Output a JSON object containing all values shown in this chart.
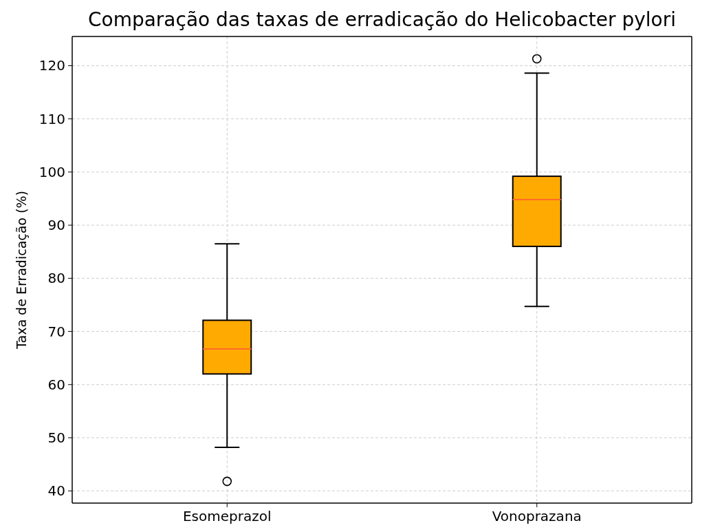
{
  "chart_data": {
    "type": "box",
    "title": "Comparação das taxas de erradicação do Helicobacter pylori",
    "ylabel": "Taxa de Erradicação (%)",
    "categories": [
      "Esomeprazol",
      "Vonoprazana"
    ],
    "boxes": [
      {
        "low": 48.2,
        "q1": 62,
        "median": 66.7,
        "q3": 72.1,
        "high": 86.5,
        "outliers": [
          41.8
        ]
      },
      {
        "low": 74.7,
        "q1": 86,
        "median": 94.8,
        "q3": 99.2,
        "high": 118.6,
        "outliers": [
          121.3
        ]
      }
    ],
    "color": "#ffaa00",
    "ylim": [
      37.7,
      125.5
    ],
    "yticks": [
      40,
      50,
      60,
      70,
      80,
      90,
      100,
      110,
      120
    ],
    "grid": true
  }
}
